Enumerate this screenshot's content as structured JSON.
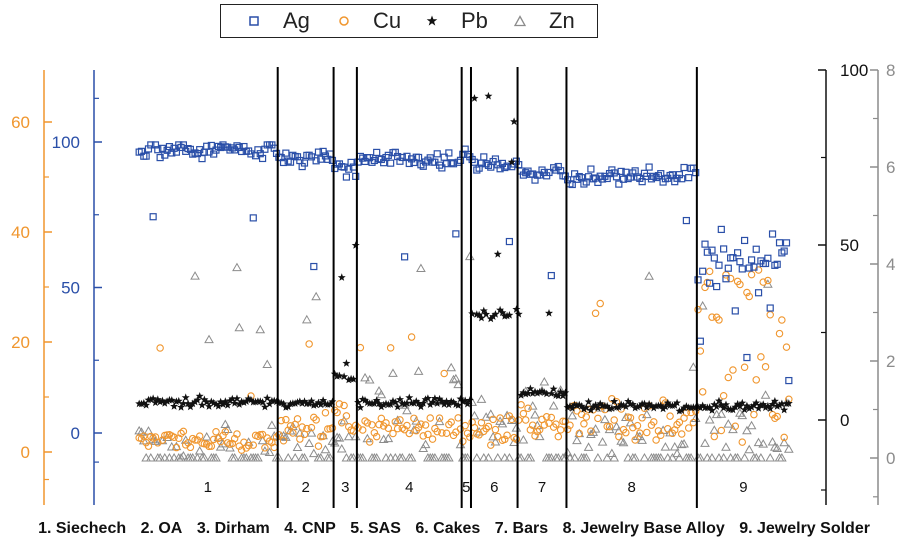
{
  "chart_data": {
    "type": "scatter",
    "legend_position": "top-center",
    "colors": {
      "Ag": "#2a4fa8",
      "Cu": "#f0962e",
      "Pb": "#111111",
      "Zn": "#8c8c8c"
    },
    "series": [
      {
        "name": "Ag",
        "marker": "open-square",
        "axis": "left-inner"
      },
      {
        "name": "Cu",
        "marker": "open-circle",
        "axis": "left-outer"
      },
      {
        "name": "Pb",
        "marker": "star",
        "axis": "right-inner"
      },
      {
        "name": "Zn",
        "marker": "open-triangle",
        "axis": "right-outer"
      }
    ],
    "axes": {
      "left_outer": {
        "ticks": [
          "60",
          "40",
          "20",
          "0"
        ],
        "color": "#f0962e",
        "range": [
          -10,
          70
        ]
      },
      "left_inner": {
        "ticks": [
          "100",
          "50",
          "0"
        ],
        "color": "#2a4fa8",
        "range": [
          -15,
          125
        ]
      },
      "right_inner": {
        "ticks": [
          "100",
          "50",
          "0"
        ],
        "color": "#111111",
        "range": [
          -25,
          100
        ]
      },
      "right_outer": {
        "ticks": [
          "8",
          "6",
          "4",
          "2",
          "0"
        ],
        "color": "#8c8c8c",
        "range": [
          -1,
          8
        ]
      }
    },
    "groups": [
      {
        "label": "1",
        "name": "Siechech",
        "start": 0,
        "end": 60,
        "ag": 97,
        "cu": 2,
        "pb": 5,
        "zn": 0.4
      },
      {
        "label": "2",
        "name": "OA",
        "start": 60,
        "end": 84,
        "ag": 95,
        "cu": 4,
        "pb": 5,
        "zn": 0.3
      },
      {
        "label": "3",
        "name": "Dirham",
        "start": 84,
        "end": 94,
        "ag": 91,
        "cu": 6,
        "pb": 12,
        "zn": 0.5
      },
      {
        "label": "4",
        "name": "CNP",
        "start": 94,
        "end": 139,
        "ag": 94,
        "cu": 4,
        "pb": 5,
        "zn": 1.1
      },
      {
        "label": "5",
        "name": "SAS",
        "start": 139,
        "end": 143,
        "ag": 96,
        "cu": 3,
        "pb": 5,
        "zn": 1.5
      },
      {
        "label": "6",
        "name": "Cakes",
        "start": 143,
        "end": 163,
        "ag": 92,
        "cu": 4,
        "pb": 30,
        "zn": 0.8
      },
      {
        "label": "7",
        "name": "Bars",
        "start": 163,
        "end": 184,
        "ag": 89,
        "cu": 5,
        "pb": 8,
        "zn": 1.0
      },
      {
        "label": "8",
        "name": "Jewelry Base Alloy",
        "start": 184,
        "end": 240,
        "ag": 88,
        "cu": 6,
        "pb": 4,
        "zn": 0.5
      },
      {
        "label": "9",
        "name": "Jewelry Solder",
        "start": 240,
        "end": 280,
        "ag": 60,
        "cu": 14,
        "pb": 4,
        "zn": 0.7
      }
    ],
    "n_samples": 280
  },
  "caption": [
    "1. Siechech",
    "2. OA",
    "3. Dirham",
    "4. CNP",
    "5. SAS",
    "6. Cakes",
    "7. Bars",
    "8. Jewelry Base Alloy",
    "9. Jewelry Solder"
  ]
}
